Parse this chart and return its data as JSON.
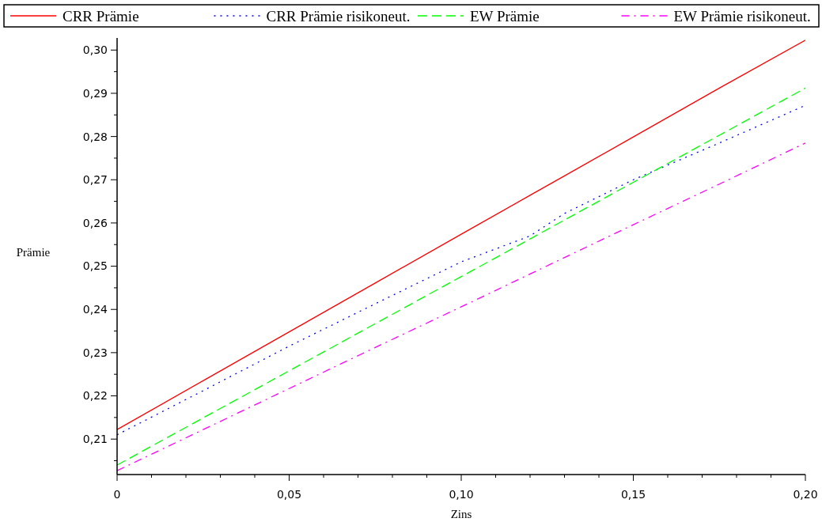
{
  "chart_data": {
    "type": "line",
    "xlabel": "Zins",
    "ylabel": "Prämie",
    "legend": "top",
    "grid": false,
    "xlim": [
      0,
      0.2
    ],
    "ylim": [
      0.2018,
      0.3028
    ],
    "xticks": [
      {
        "value": 0,
        "label": "0"
      },
      {
        "value": 0.01,
        "label": null
      },
      {
        "value": 0.02,
        "label": null
      },
      {
        "value": 0.03,
        "label": null
      },
      {
        "value": 0.04,
        "label": null
      },
      {
        "value": 0.05,
        "label": "0,05"
      },
      {
        "value": 0.06,
        "label": null
      },
      {
        "value": 0.07,
        "label": null
      },
      {
        "value": 0.08,
        "label": null
      },
      {
        "value": 0.09,
        "label": null
      },
      {
        "value": 0.1,
        "label": "0,10"
      },
      {
        "value": 0.11,
        "label": null
      },
      {
        "value": 0.12,
        "label": null
      },
      {
        "value": 0.13,
        "label": null
      },
      {
        "value": 0.14,
        "label": null
      },
      {
        "value": 0.15,
        "label": "0,15"
      },
      {
        "value": 0.16,
        "label": null
      },
      {
        "value": 0.17,
        "label": null
      },
      {
        "value": 0.18,
        "label": null
      },
      {
        "value": 0.19,
        "label": null
      },
      {
        "value": 0.2,
        "label": "0,20"
      }
    ],
    "yticks": [
      {
        "value": 0.205,
        "label": null
      },
      {
        "value": 0.21,
        "label": "0,21"
      },
      {
        "value": 0.215,
        "label": null
      },
      {
        "value": 0.22,
        "label": "0,22"
      },
      {
        "value": 0.225,
        "label": null
      },
      {
        "value": 0.23,
        "label": "0,23"
      },
      {
        "value": 0.235,
        "label": null
      },
      {
        "value": 0.24,
        "label": "0,24"
      },
      {
        "value": 0.245,
        "label": null
      },
      {
        "value": 0.25,
        "label": "0,25"
      },
      {
        "value": 0.255,
        "label": null
      },
      {
        "value": 0.26,
        "label": "0,26"
      },
      {
        "value": 0.265,
        "label": null
      },
      {
        "value": 0.27,
        "label": "0,27"
      },
      {
        "value": 0.275,
        "label": null
      },
      {
        "value": 0.28,
        "label": "0,28"
      },
      {
        "value": 0.285,
        "label": null
      },
      {
        "value": 0.29,
        "label": "0,29"
      },
      {
        "value": 0.295,
        "label": null
      },
      {
        "value": 0.3,
        "label": "0,30"
      }
    ],
    "x": [
      0,
      0.025,
      0.05,
      0.075,
      0.1,
      0.12,
      0.13,
      0.15,
      0.175,
      0.2
    ],
    "series": [
      {
        "name": "CRR Prämie",
        "color": "#ff0000",
        "line_style": "solid",
        "values": [
          0.2122,
          0.2235,
          0.2348,
          0.2461,
          0.2574,
          0.2664,
          0.2709,
          0.2799,
          0.2912,
          0.3023
        ]
      },
      {
        "name": "CRR Prämie risikoneut.",
        "color": "#0000ff",
        "line_style": "dotted",
        "values": [
          0.211,
          0.2212,
          0.2315,
          0.2413,
          0.251,
          0.257,
          0.2622,
          0.27,
          0.2785,
          0.2872
        ]
      },
      {
        "name": "EW Prämie",
        "color": "#00ff00",
        "line_style": "dashed",
        "values": [
          0.204,
          0.2149,
          0.2258,
          0.2367,
          0.2476,
          0.2563,
          0.2607,
          0.2694,
          0.2803,
          0.2912
        ]
      },
      {
        "name": "EW Prämie risikoneut.",
        "color": "#ff00ff",
        "line_style": "dashdot",
        "values": [
          0.2027,
          0.2122,
          0.2217,
          0.2312,
          0.2406,
          0.2482,
          0.252,
          0.2596,
          0.269,
          0.2785
        ]
      }
    ]
  }
}
